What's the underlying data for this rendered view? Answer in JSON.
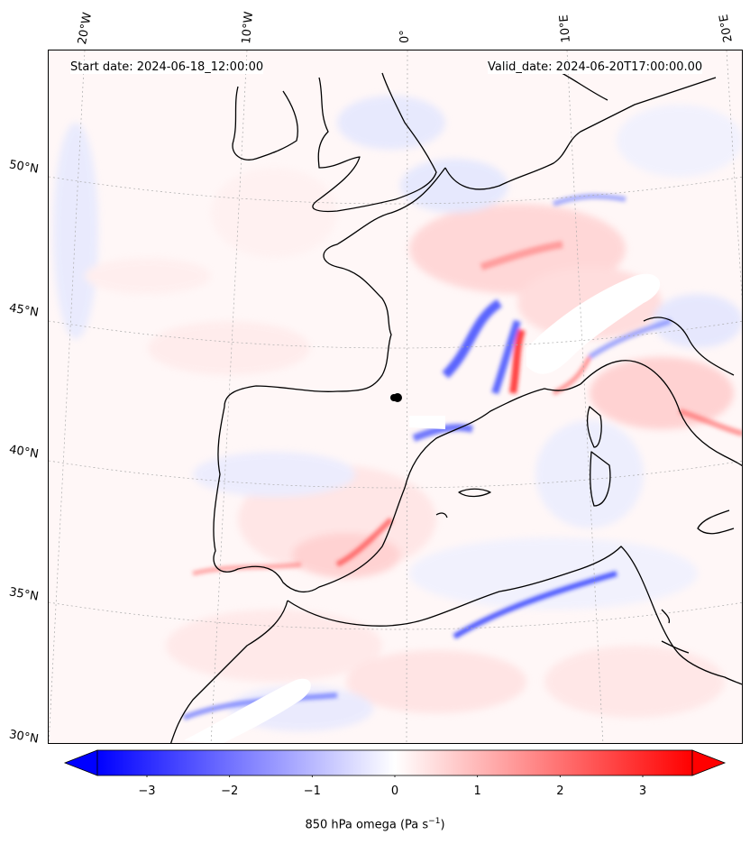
{
  "header": {
    "start_date": "Start date: 2024-06-18_12:00:00",
    "valid_date": "Valid_date: 2024-06-20T17:00:00.00"
  },
  "axes": {
    "lon_labels": [
      "20°W",
      "10°W",
      "0°",
      "10°E",
      "20°E"
    ],
    "lat_labels": [
      "50°N",
      "45°N",
      "40°N",
      "35°N",
      "30°N"
    ]
  },
  "colorbar": {
    "ticks": [
      "−3",
      "−2",
      "−1",
      "0",
      "1",
      "2",
      "3"
    ],
    "tick_values": [
      -3,
      -2,
      -1,
      0,
      1,
      2,
      3
    ],
    "range": [
      -3.6,
      3.6
    ],
    "label_main": "850 hPa omega (Pa s",
    "label_exp": "−1",
    "label_end": ")",
    "colors": {
      "min": "#0000ff",
      "mid": "#ffffff",
      "max": "#ff0000"
    }
  },
  "colors": {
    "coast": "#000000",
    "grid": "#aaaaaa"
  }
}
